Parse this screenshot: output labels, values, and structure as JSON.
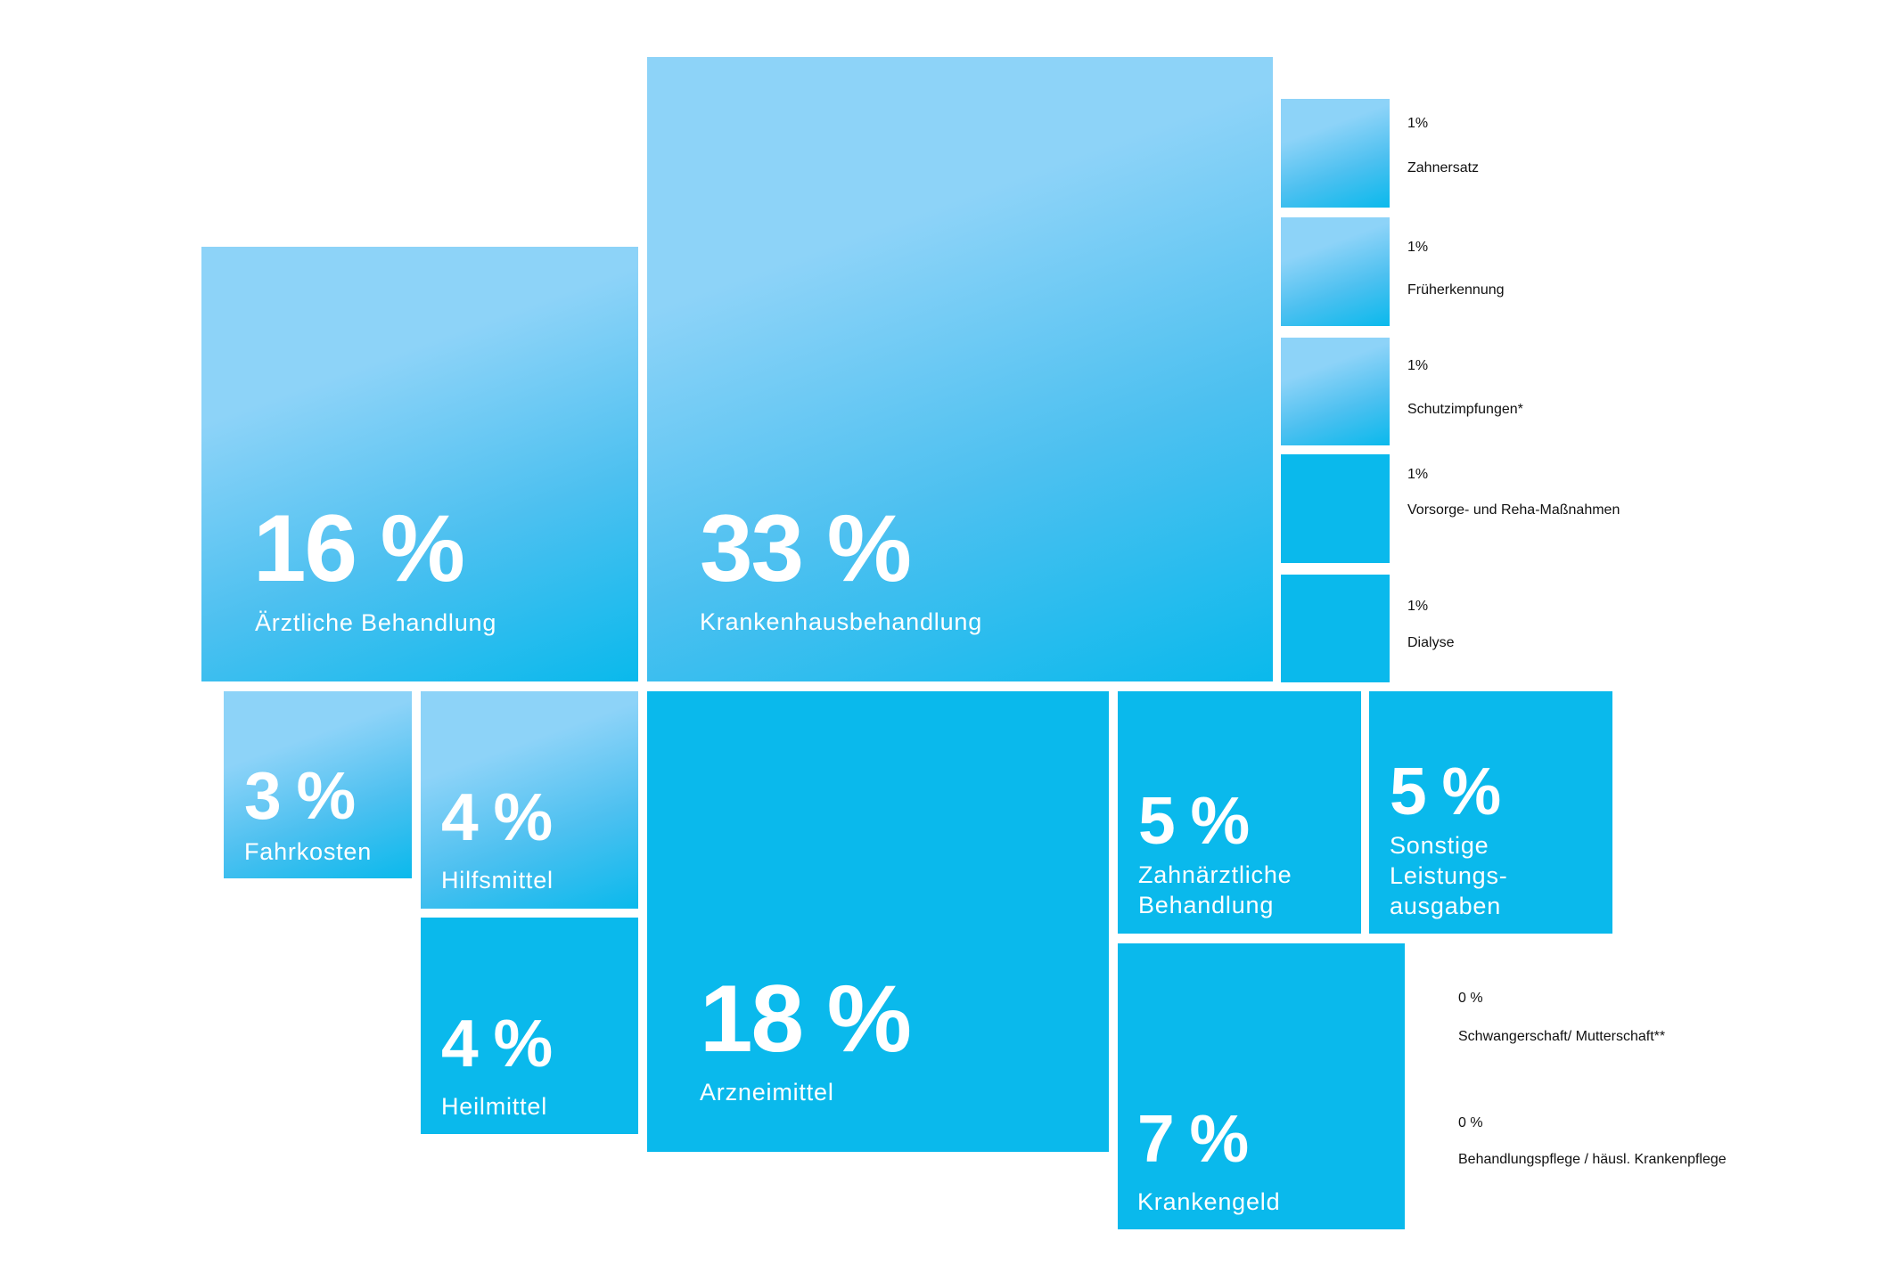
{
  "chart_data": {
    "type": "treemap",
    "unit": "%",
    "colors": {
      "light": "#8dd3f8",
      "mid": "#4cc0f0",
      "main": "#0ab9ec",
      "text_inside": "#ffffff",
      "text_outside": "#111111"
    },
    "items": [
      {
        "id": "krankenhaus",
        "value": 33,
        "value_label": "33 %",
        "label": "Krankenhausbehandlung"
      },
      {
        "id": "arznei",
        "value": 18,
        "value_label": "18 %",
        "label": "Arzneimittel"
      },
      {
        "id": "aerztlich",
        "value": 16,
        "value_label": "16 %",
        "label": "Ärztliche Behandlung"
      },
      {
        "id": "krankengeld",
        "value": 7,
        "value_label": "7 %",
        "label": "Krankengeld"
      },
      {
        "id": "zahnaerztlich",
        "value": 5,
        "value_label": "5 %",
        "label": "Zahnärztliche\nBehandlung"
      },
      {
        "id": "sonstige",
        "value": 5,
        "value_label": "5 %",
        "label": "Sonstige\nLeistungs-\nausgaben"
      },
      {
        "id": "hilfsmittel",
        "value": 4,
        "value_label": "4 %",
        "label": "Hilfsmittel"
      },
      {
        "id": "heilmittel",
        "value": 4,
        "value_label": "4 %",
        "label": "Heilmittel"
      },
      {
        "id": "fahrkosten",
        "value": 3,
        "value_label": "3 %",
        "label": "Fahrkosten"
      },
      {
        "id": "zahnersatz",
        "value": 1,
        "value_label": "1%",
        "label": "Zahnersatz"
      },
      {
        "id": "frueherkennung",
        "value": 1,
        "value_label": "1%",
        "label": "Früherkennung"
      },
      {
        "id": "schutzimpfungen",
        "value": 1,
        "value_label": "1%",
        "label": "Schutzimpfungen*"
      },
      {
        "id": "vorsorge",
        "value": 1,
        "value_label": "1%",
        "label": "Vorsorge- und\nReha-Maßnahmen"
      },
      {
        "id": "dialyse",
        "value": 1,
        "value_label": "1%",
        "label": "Dialyse"
      },
      {
        "id": "schwangerschaft",
        "value": 0,
        "value_label": "0 %",
        "label": "Schwangerschaft/\nMutterschaft**"
      },
      {
        "id": "behandlungspflege",
        "value": 0,
        "value_label": "0 %",
        "label": "Behandlungspflege /\nhäusl. Krankenpflege"
      }
    ]
  }
}
